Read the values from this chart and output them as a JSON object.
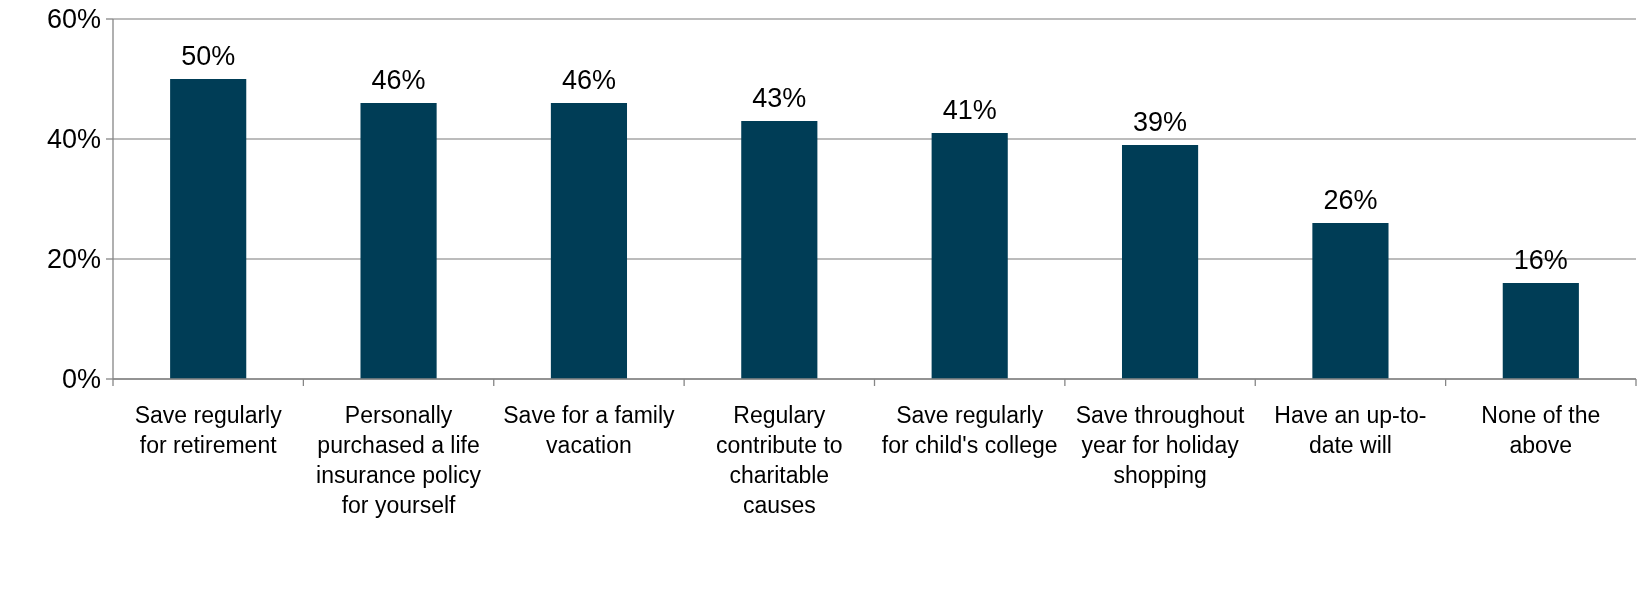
{
  "chart_data": {
    "type": "bar",
    "categories": [
      "Save regularly for retirement",
      "Personally purchased a life insurance policy for yourself",
      "Save for a family vacation",
      "Regulary contribute to charitable causes",
      "Save regularly for child's college",
      "Save throughout year for holiday shopping",
      "Have an up-to-date will",
      "None of the above"
    ],
    "values": [
      50,
      46,
      46,
      43,
      41,
      39,
      26,
      16
    ],
    "value_labels": [
      "50%",
      "46%",
      "46%",
      "43%",
      "41%",
      "39%",
      "26%",
      "16%"
    ],
    "color": "#003d56",
    "ylim": [
      0,
      60
    ],
    "yticks": [
      {
        "value": 0,
        "label": "0%"
      },
      {
        "value": 20,
        "label": "20%"
      },
      {
        "value": 40,
        "label": "40%"
      },
      {
        "value": 60,
        "label": "60%"
      }
    ],
    "grid": "y"
  }
}
